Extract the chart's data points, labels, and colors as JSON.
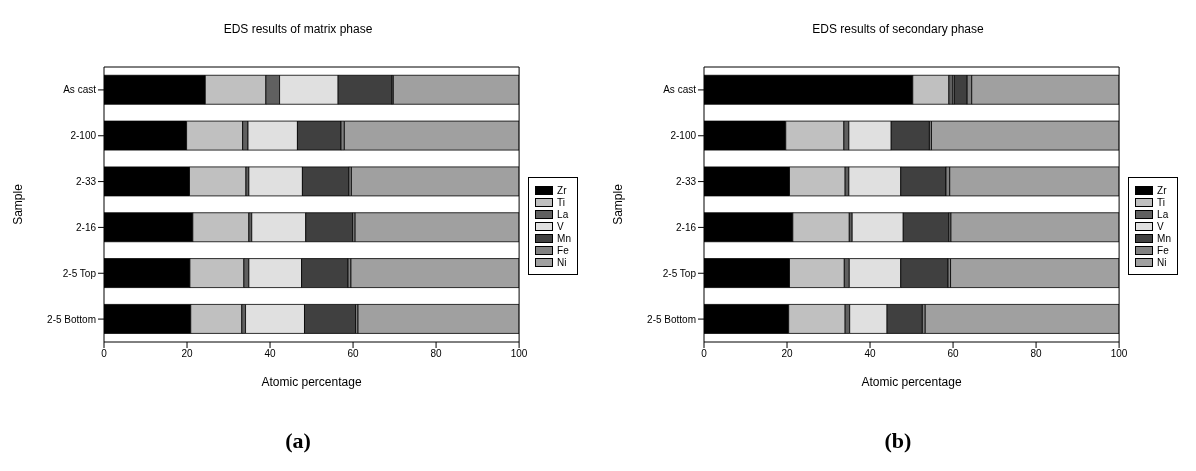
{
  "chart_data": [
    {
      "type": "bar",
      "orientation": "horizontal",
      "stacked": true,
      "title": "EDS results of matrix phase",
      "xlabel": "Atomic percentage",
      "ylabel": "Sample",
      "categories": [
        "As cast",
        "2-100",
        "2-33",
        "2-16",
        "2-5 Top",
        "2-5 Bottom"
      ],
      "xlim": [
        0,
        100
      ],
      "xticks": [
        0,
        20,
        40,
        60,
        80,
        100
      ],
      "legend": "right",
      "annotations": [
        "(a)"
      ],
      "series": [
        {
          "name": "Zr",
          "color": "#000000",
          "values": [
            24.4,
            19.9,
            20.6,
            21.4,
            20.7,
            20.9
          ]
        },
        {
          "name": "Ti",
          "color": "#c0c0c0",
          "values": [
            14.6,
            13.5,
            13.6,
            13.5,
            13.0,
            12.3
          ]
        },
        {
          "name": "La",
          "color": "#606060",
          "values": [
            3.3,
            1.3,
            0.7,
            0.7,
            1.2,
            0.9
          ]
        },
        {
          "name": "V",
          "color": "#e0e0e0",
          "values": [
            14.1,
            11.9,
            12.9,
            13.0,
            12.7,
            14.2
          ]
        },
        {
          "name": "Mn",
          "color": "#404040",
          "values": [
            13.0,
            10.5,
            11.2,
            11.3,
            11.2,
            12.3
          ]
        },
        {
          "name": "Fe",
          "color": "#808080",
          "values": [
            0.3,
            0.8,
            0.6,
            0.6,
            0.7,
            0.6
          ]
        },
        {
          "name": "Ni",
          "color": "#a0a0a0",
          "values": [
            30.3,
            42.1,
            40.4,
            39.5,
            40.5,
            38.8
          ]
        }
      ]
    },
    {
      "type": "bar",
      "orientation": "horizontal",
      "stacked": true,
      "title": "EDS results of secondary phase",
      "xlabel": "Atomic percentage",
      "ylabel": "Sample",
      "categories": [
        "As cast",
        "2-100",
        "2-33",
        "2-16",
        "2-5 Top",
        "2-5 Bottom"
      ],
      "xlim": [
        0,
        100
      ],
      "xticks": [
        0,
        20,
        40,
        60,
        80,
        100
      ],
      "legend": "right",
      "annotations": [
        "(b)"
      ],
      "series": [
        {
          "name": "Zr",
          "color": "#000000",
          "values": [
            50.3,
            19.7,
            20.6,
            21.4,
            20.6,
            20.4
          ]
        },
        {
          "name": "Ti",
          "color": "#c0c0c0",
          "values": [
            8.7,
            14.0,
            13.4,
            13.6,
            13.2,
            13.6
          ]
        },
        {
          "name": "La",
          "color": "#606060",
          "values": [
            1.0,
            1.2,
            0.9,
            0.7,
            1.2,
            1.1
          ]
        },
        {
          "name": "V",
          "color": "#e0e0e0",
          "values": [
            0.3,
            10.2,
            12.5,
            12.3,
            12.4,
            9.0
          ]
        },
        {
          "name": "Mn",
          "color": "#404040",
          "values": [
            3.1,
            9.2,
            10.9,
            11.0,
            11.4,
            8.5
          ]
        },
        {
          "name": "Fe",
          "color": "#808080",
          "values": [
            1.1,
            0.5,
            0.9,
            0.5,
            0.6,
            0.7
          ]
        },
        {
          "name": "Ni",
          "color": "#a0a0a0",
          "values": [
            35.5,
            45.2,
            40.8,
            40.5,
            40.6,
            46.7
          ]
        }
      ]
    }
  ]
}
